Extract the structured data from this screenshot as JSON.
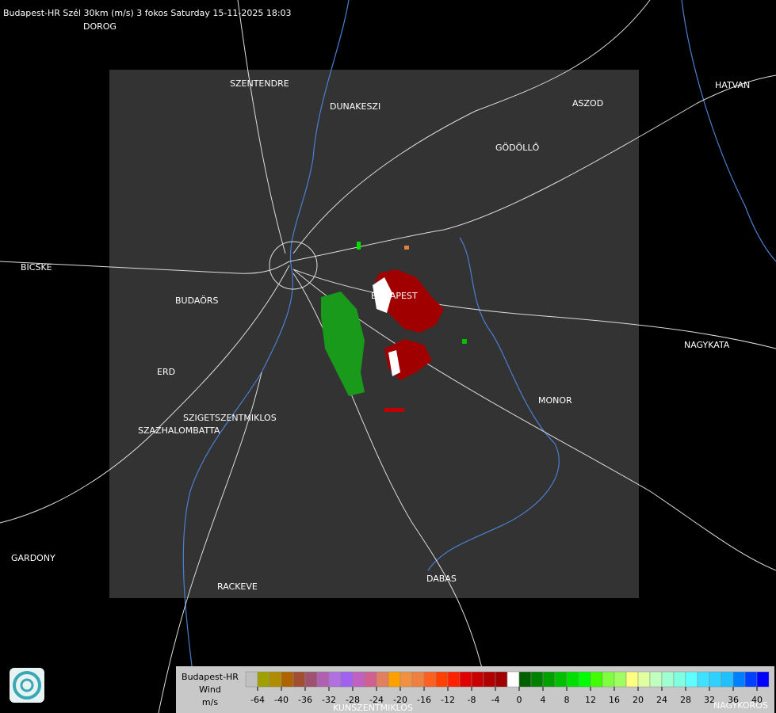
{
  "header": {
    "title": "Budapest-HR Szél 30km (m/s) 3 fokos Saturday 15-11-2025 18:03"
  },
  "places": [
    "DOROG",
    "SZENTENDRE",
    "DUNAKESZI",
    "ASZOD",
    "HATVAN",
    "GÖDÖLLŐ",
    "BICSKE",
    "BUDAPEST",
    "BUDAÖRS",
    "NAGYKATA",
    "ERD",
    "MONOR",
    "SZIGETSZENTMIKLOS",
    "SZAZHALOMBATTA",
    "GARDONY",
    "DABAS",
    "RACKEVE",
    "KUNSZENTMIKLOS",
    "NAGYKOROS"
  ],
  "legend": {
    "title": [
      "Budapest-HR",
      "Wind",
      "m/s"
    ],
    "ticks": [
      -64,
      -40,
      -36,
      -32,
      -28,
      -24,
      -20,
      -16,
      -12,
      -8,
      -4,
      0,
      4,
      8,
      12,
      16,
      20,
      24,
      28,
      32,
      36,
      40
    ],
    "colors": [
      "#c0c0c0",
      "#a0a000",
      "#b08c00",
      "#b06400",
      "#a05030",
      "#a05070",
      "#b060b0",
      "#b070e0",
      "#a060f0",
      "#c060c0",
      "#d06090",
      "#e08060",
      "#ffa000",
      "#f09040",
      "#f08040",
      "#ff6020",
      "#ff4000",
      "#ff2000",
      "#e00000",
      "#c80000",
      "#b00000",
      "#a00000",
      "#ffffff",
      "#006000",
      "#008000",
      "#00a000",
      "#00c000",
      "#00e000",
      "#00ff00",
      "#40ff00",
      "#80ff40",
      "#a0ff60",
      "#ffff80",
      "#e0ffa0",
      "#c0ffc0",
      "#a0ffd0",
      "#80ffe0",
      "#60ffff",
      "#40e0ff",
      "#30d0ff",
      "#20c0ff",
      "#0080ff",
      "#0040ff",
      "#0000ff"
    ]
  }
}
